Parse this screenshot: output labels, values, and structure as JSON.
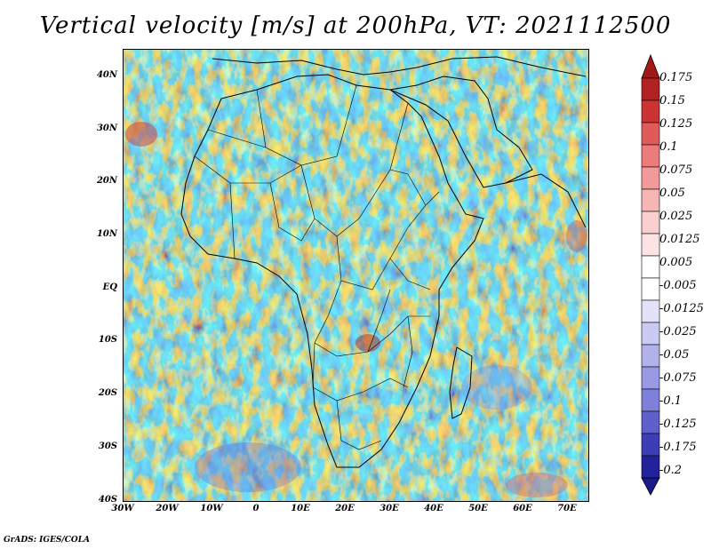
{
  "title": "Vertical velocity [m/s] at 200hPa, VT: 2021112500",
  "credit": "GrADS: IGES/COLA",
  "axes": {
    "lat_labels": [
      "40N",
      "30N",
      "20N",
      "10N",
      "EQ",
      "10S",
      "20S",
      "30S",
      "40S"
    ],
    "lon_labels": [
      "30W",
      "20W",
      "10W",
      "0",
      "10E",
      "20E",
      "30E",
      "40E",
      "50E",
      "60E",
      "70E"
    ]
  },
  "colorbar": {
    "labels": [
      "0.175",
      "0.15",
      "0.125",
      "0.1",
      "0.075",
      "0.05",
      "0.025",
      "0.0125",
      "0.005",
      "-0.005",
      "-0.0125",
      "-0.025",
      "-0.05",
      "-0.075",
      "-0.1",
      "-0.125",
      "-0.175",
      "-0.2"
    ],
    "colors": [
      "#b22222",
      "#cc3333",
      "#e05a5a",
      "#ec7b7b",
      "#f29a9a",
      "#f6b6b6",
      "#f9cfcf",
      "#fce4e4",
      "#ffffff",
      "#ffffff",
      "#e2e2f8",
      "#cacaf2",
      "#b1b1ec",
      "#9999e6",
      "#7f7fdc",
      "#6060cc",
      "#3d3db5",
      "#22229a"
    ],
    "top_cap_color": "#a01818",
    "bottom_cap_color": "#1a1a8a"
  }
}
